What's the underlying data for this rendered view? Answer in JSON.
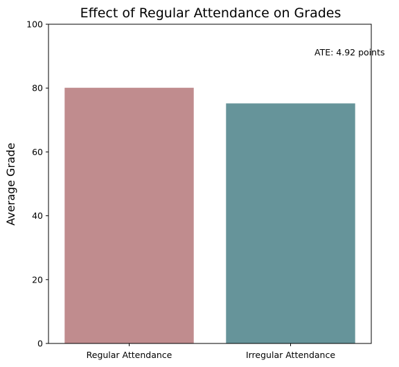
{
  "chart_data": {
    "type": "bar",
    "title": "Effect of Regular Attendance on Grades",
    "xlabel": "",
    "ylabel": "Average Grade",
    "categories": [
      "Regular Attendance",
      "Irregular Attendance"
    ],
    "values": [
      80.1,
      75.2
    ],
    "colors": [
      "#c08c8e",
      "#66949a"
    ],
    "ylim": [
      0,
      100
    ],
    "yticks": [
      0,
      20,
      40,
      60,
      80,
      100
    ],
    "grid": false,
    "annotation": "ATE: 4.92 points"
  }
}
